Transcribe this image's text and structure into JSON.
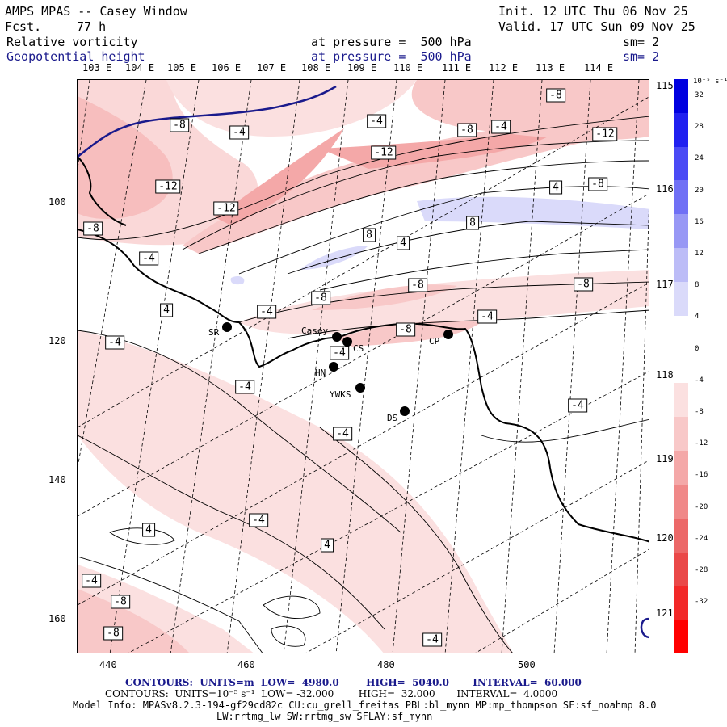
{
  "header": {
    "title": "AMPS MPAS -- Casey Window",
    "fcst_label": "Fcst.",
    "fcst_value": "77 h",
    "init": "Init. 12 UTC Thu 06 Nov 25",
    "valid": "Valid. 17 UTC Sun 09 Nov 25",
    "field1_name": "Relative vorticity",
    "field1_level": "at pressure =  500 hPa",
    "field1_sm": "sm= 2",
    "field2_name": "Geopotential height",
    "field2_level": "at pressure =  500 hPa",
    "field2_sm": "sm= 2"
  },
  "top_lon_labels": [
    "103 E",
    "104 E",
    "105 E",
    "106 E",
    "107 E",
    "108 E",
    "109 E",
    "110 E",
    "111 E",
    "112 E",
    "113 E",
    "114 E"
  ],
  "right_lon_labels": [
    "115 E",
    "116 E",
    "117 E",
    "118 E",
    "119 E",
    "120 E",
    "121 E"
  ],
  "y_ticks": [
    "100",
    "120",
    "140",
    "160"
  ],
  "x_ticks": [
    "440",
    "460",
    "480",
    "500"
  ],
  "legend": {
    "unit": "10⁻⁵ s⁻¹",
    "values": [
      "32",
      "28",
      "24",
      "20",
      "16",
      "12",
      "8",
      "4",
      "0",
      "-4",
      "-8",
      "-12",
      "-16",
      "-20",
      "-24",
      "-28",
      "-32"
    ],
    "colors": [
      "#0000e0",
      "#2020f0",
      "#4a4af5",
      "#7070f5",
      "#9898f5",
      "#bcbcf7",
      "#dadafa",
      "#ffffff",
      "#ffffff",
      "#fbe0e0",
      "#f8c8c8",
      "#f4a8a8",
      "#f08888",
      "#ec6868",
      "#ea4848",
      "#f22828",
      "#ff0000"
    ]
  },
  "contour_labels": [
    {
      "text": "-8"
    },
    {
      "text": "-4"
    },
    {
      "text": "-4"
    },
    {
      "text": "-8"
    },
    {
      "text": "-4"
    },
    {
      "text": "-12"
    },
    {
      "text": "-12"
    },
    {
      "text": "-12"
    },
    {
      "text": "-8"
    },
    {
      "text": "-12"
    },
    {
      "text": "4"
    },
    {
      "text": "-8"
    },
    {
      "text": "8"
    },
    {
      "text": "8"
    },
    {
      "text": "4"
    },
    {
      "text": "-8"
    },
    {
      "text": "-4"
    },
    {
      "text": "-8"
    },
    {
      "text": "-8"
    },
    {
      "text": "4"
    },
    {
      "text": "-4"
    },
    {
      "text": "-4"
    },
    {
      "text": "-4"
    },
    {
      "text": "-8"
    },
    {
      "text": "-4"
    },
    {
      "text": "-4"
    },
    {
      "text": "-4"
    },
    {
      "text": "-4"
    },
    {
      "text": "4"
    },
    {
      "text": "4"
    },
    {
      "text": "-4"
    },
    {
      "text": "-4"
    },
    {
      "text": "-8"
    },
    {
      "text": "-8"
    },
    {
      "text": "-4"
    },
    {
      "text": "-8"
    }
  ],
  "stations": [
    {
      "name": "SR"
    },
    {
      "name": "Casey"
    },
    {
      "name": "CS"
    },
    {
      "name": "CP"
    },
    {
      "name": "HN"
    },
    {
      "name": "YWKS"
    },
    {
      "name": "DS"
    }
  ],
  "footer": {
    "line1": "CONTOURS:  UNITS=m  LOW=  4980.0        HIGH=  5040.0       INTERVAL=  60.000",
    "line2": "CONTOURS:  UNITS=10⁻⁵ s⁻¹  LOW= -32.000        HIGH=  32.000       INTERVAL=  4.0000",
    "line3": "Model Info: MPASv8.2.3-194-gf29cd82c CU:cu_grell_freitas PBL:bl_mynn MP:mp_thompson SF:sf_noahmp 8.0",
    "line4": "LW:rrtmg_lw SW:rrtmg_sw SFLAY:sf_mynn"
  }
}
